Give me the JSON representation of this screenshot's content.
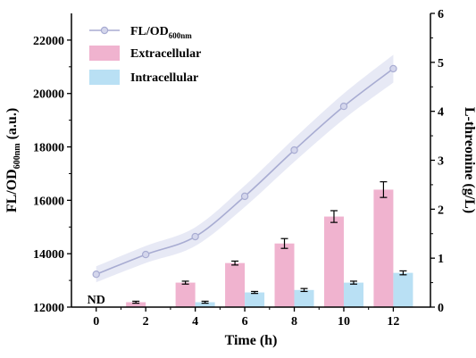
{
  "chart_data": {
    "type": "bar+line",
    "x": [
      0,
      2,
      4,
      6,
      8,
      10,
      12
    ],
    "xlabel": "Time (h)",
    "xlim": [
      -1,
      13.5
    ],
    "ylabel_left": "FL/OD600nm (a.u.)",
    "ylabel_left_main": "FL/OD",
    "ylabel_left_sub": "600nm",
    "ylabel_left_suffix": " (a.u.)",
    "ylim_left": [
      12000,
      23000
    ],
    "yticks_left": [
      12000,
      14000,
      16000,
      18000,
      20000,
      22000
    ],
    "ylabel_right": "L-threonine (g/L)",
    "ylim_right": [
      0,
      6
    ],
    "yticks_right": [
      0,
      1,
      2,
      3,
      4,
      5,
      6
    ],
    "annotation": "ND",
    "grid": false,
    "legend_position": "top-left",
    "series": [
      {
        "name": "FL/OD600nm",
        "name_main": "FL/OD",
        "name_sub": "600nm",
        "kind": "line",
        "axis": "left",
        "values": [
          13230,
          13970,
          14640,
          16150,
          17880,
          19520,
          20930
        ],
        "band": [
          300,
          320,
          350,
          400,
          440,
          480,
          520
        ]
      },
      {
        "name": "Extracellular",
        "kind": "bar",
        "axis": "right",
        "values": [
          null,
          0.1,
          0.5,
          0.9,
          1.3,
          1.85,
          2.4
        ],
        "errors": [
          null,
          0.02,
          0.03,
          0.04,
          0.1,
          0.12,
          0.16
        ]
      },
      {
        "name": "Intracellular",
        "kind": "bar",
        "axis": "right",
        "values": [
          null,
          null,
          0.1,
          0.3,
          0.35,
          0.5,
          0.7
        ],
        "errors": [
          null,
          null,
          0.02,
          0.02,
          0.03,
          0.03,
          0.04
        ]
      }
    ]
  },
  "colors": {
    "line": "#a8acd2",
    "marker_fill": "#d4d6ec",
    "band": "#dfe1f2",
    "extracellular": "#f0b3cf",
    "intracellular": "#b9e0f4",
    "axis": "#000000"
  }
}
